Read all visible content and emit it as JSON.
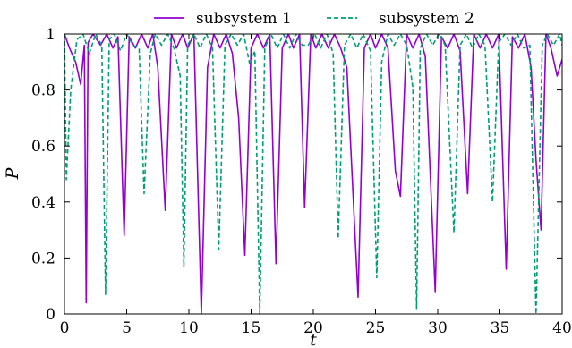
{
  "chart_data": {
    "type": "line",
    "xlabel": "t",
    "ylabel": "P",
    "xlim": [
      0,
      40
    ],
    "ylim": [
      0,
      1
    ],
    "xticks": [
      "0",
      "5",
      "10",
      "15",
      "20",
      "25",
      "30",
      "35",
      "40"
    ],
    "yticks": [
      "0",
      "0.2",
      "0.4",
      "0.6",
      "0.8",
      "1"
    ],
    "legend_position": "top",
    "grid": false,
    "series": [
      {
        "name": "subsystem 1",
        "color": "#9400d3",
        "dash": "solid",
        "values": [
          [
            0,
            1
          ],
          [
            0.4,
            0.95
          ],
          [
            0.9,
            0.9
          ],
          [
            1.3,
            0.82
          ],
          [
            1.6,
            0.96
          ],
          [
            1.75,
            0.04
          ],
          [
            1.9,
            0.97
          ],
          [
            2.3,
            1.0
          ],
          [
            2.9,
            0.96
          ],
          [
            3.4,
            1.0
          ],
          [
            3.9,
            0.95
          ],
          [
            4.3,
            0.99
          ],
          [
            4.8,
            0.28
          ],
          [
            5.2,
            0.99
          ],
          [
            5.7,
            0.95
          ],
          [
            6.2,
            1.0
          ],
          [
            6.7,
            0.95
          ],
          [
            7.1,
            1.0
          ],
          [
            7.5,
            0.88
          ],
          [
            8.1,
            0.37
          ],
          [
            8.6,
            1.0
          ],
          [
            9.0,
            0.95
          ],
          [
            9.5,
            1.0
          ],
          [
            9.9,
            0.95
          ],
          [
            10.4,
            1.0
          ],
          [
            11.0,
            0.0
          ],
          [
            11.5,
            0.88
          ],
          [
            12.0,
            1.0
          ],
          [
            12.5,
            0.95
          ],
          [
            13.0,
            1.0
          ],
          [
            13.5,
            0.93
          ],
          [
            14.0,
            0.7
          ],
          [
            14.5,
            0.21
          ],
          [
            15.0,
            0.95
          ],
          [
            15.5,
            1.0
          ],
          [
            16.0,
            0.95
          ],
          [
            16.5,
            1.0
          ],
          [
            17.0,
            0.18
          ],
          [
            17.5,
            0.95
          ],
          [
            18.0,
            1.0
          ],
          [
            18.4,
            0.95
          ],
          [
            18.9,
            1.0
          ],
          [
            19.3,
            0.38
          ],
          [
            19.8,
            1.0
          ],
          [
            20.2,
            0.95
          ],
          [
            20.7,
            1.0
          ],
          [
            21.2,
            0.95
          ],
          [
            21.7,
            1.0
          ],
          [
            22.2,
            0.95
          ],
          [
            22.7,
            0.88
          ],
          [
            23.6,
            0.06
          ],
          [
            24.1,
            0.95
          ],
          [
            24.6,
            1.0
          ],
          [
            25.0,
            0.95
          ],
          [
            25.5,
            1.0
          ],
          [
            26.0,
            0.95
          ],
          [
            26.6,
            0.51
          ],
          [
            27.0,
            0.42
          ],
          [
            27.5,
            1.0
          ],
          [
            28.0,
            0.95
          ],
          [
            28.5,
            1.0
          ],
          [
            29.0,
            0.92
          ],
          [
            29.8,
            0.08
          ],
          [
            30.3,
            0.99
          ],
          [
            30.8,
            0.95
          ],
          [
            31.3,
            1.0
          ],
          [
            31.8,
            0.94
          ],
          [
            32.4,
            0.43
          ],
          [
            32.9,
            1.0
          ],
          [
            33.4,
            0.95
          ],
          [
            33.9,
            1.0
          ],
          [
            34.4,
            0.95
          ],
          [
            34.9,
            1.0
          ],
          [
            35.5,
            0.16
          ],
          [
            36.0,
            0.99
          ],
          [
            36.5,
            0.95
          ],
          [
            37.0,
            1.0
          ],
          [
            37.5,
            0.88
          ],
          [
            37.9,
            0.55
          ],
          [
            38.3,
            0.3
          ],
          [
            38.7,
            1.0
          ],
          [
            39.1,
            0.95
          ],
          [
            39.6,
            0.85
          ],
          [
            40.0,
            0.91
          ]
        ]
      },
      {
        "name": "subsystem 2",
        "color": "#009e73",
        "dash": "5,3",
        "values": [
          [
            0,
            1
          ],
          [
            0.15,
            0.48
          ],
          [
            0.5,
            0.8
          ],
          [
            1.0,
            0.98
          ],
          [
            1.5,
            1.0
          ],
          [
            2.0,
            0.93
          ],
          [
            2.5,
            1.0
          ],
          [
            3.0,
            0.96
          ],
          [
            3.3,
            0.07
          ],
          [
            3.6,
            0.98
          ],
          [
            4.0,
            1.0
          ],
          [
            4.5,
            0.94
          ],
          [
            5.0,
            1.0
          ],
          [
            5.5,
            0.96
          ],
          [
            6.0,
            0.95
          ],
          [
            6.4,
            0.43
          ],
          [
            6.9,
            0.93
          ],
          [
            7.3,
            1.0
          ],
          [
            7.8,
            0.96
          ],
          [
            8.3,
            1.0
          ],
          [
            8.8,
            0.95
          ],
          [
            9.3,
            0.85
          ],
          [
            9.6,
            0.17
          ],
          [
            9.9,
            0.96
          ],
          [
            10.4,
            1.0
          ],
          [
            10.9,
            0.95
          ],
          [
            11.4,
            1.0
          ],
          [
            11.9,
            0.95
          ],
          [
            12.4,
            0.23
          ],
          [
            12.9,
            0.96
          ],
          [
            13.4,
            1.0
          ],
          [
            13.9,
            0.96
          ],
          [
            14.4,
            1.0
          ],
          [
            14.9,
            0.89
          ],
          [
            15.3,
            0.94
          ],
          [
            15.7,
            0.0
          ],
          [
            16.1,
            0.95
          ],
          [
            16.6,
            1.0
          ],
          [
            17.1,
            0.95
          ],
          [
            17.6,
            1.0
          ],
          [
            18.1,
            0.95
          ],
          [
            18.6,
            1.0
          ],
          [
            19.1,
            0.96
          ],
          [
            19.6,
            0.96
          ],
          [
            20.1,
            1.0
          ],
          [
            20.6,
            0.95
          ],
          [
            21.1,
            1.0
          ],
          [
            21.6,
            0.93
          ],
          [
            22.0,
            0.27
          ],
          [
            22.5,
            0.96
          ],
          [
            23.0,
            1.0
          ],
          [
            23.5,
            0.95
          ],
          [
            24.0,
            1.0
          ],
          [
            24.6,
            0.94
          ],
          [
            25.1,
            0.13
          ],
          [
            25.5,
            0.9
          ],
          [
            26.0,
            1.0
          ],
          [
            26.5,
            0.96
          ],
          [
            27.0,
            1.0
          ],
          [
            27.5,
            0.96
          ],
          [
            28.0,
            0.81
          ],
          [
            28.3,
            0.02
          ],
          [
            28.6,
            0.95
          ],
          [
            29.1,
            1.0
          ],
          [
            29.6,
            0.96
          ],
          [
            30.1,
            1.0
          ],
          [
            30.6,
            0.96
          ],
          [
            31.3,
            0.29
          ],
          [
            31.8,
            0.96
          ],
          [
            32.3,
            1.0
          ],
          [
            32.8,
            0.95
          ],
          [
            33.3,
            1.0
          ],
          [
            33.8,
            0.96
          ],
          [
            34.4,
            0.4
          ],
          [
            34.9,
            0.97
          ],
          [
            35.4,
            1.0
          ],
          [
            35.9,
            0.96
          ],
          [
            36.4,
            1.0
          ],
          [
            36.9,
            0.95
          ],
          [
            37.4,
            0.96
          ],
          [
            37.9,
            0.0
          ],
          [
            38.4,
            0.96
          ],
          [
            38.8,
            1.0
          ],
          [
            39.3,
            0.96
          ],
          [
            39.8,
            1.0
          ],
          [
            40.0,
            0.96
          ]
        ]
      }
    ]
  }
}
